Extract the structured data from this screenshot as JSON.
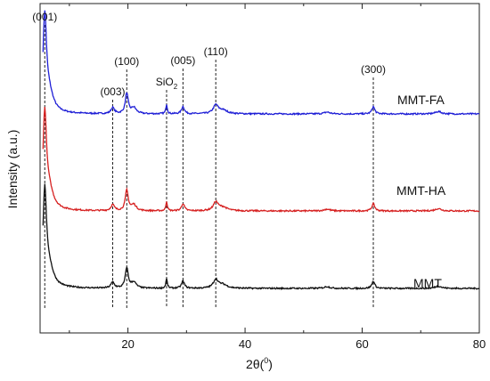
{
  "chart_data": {
    "type": "line",
    "title": "",
    "xlabel": "2θ(⁰)",
    "xlabel_parts": {
      "main": "2θ(",
      "sup": "0",
      "tail": ")"
    },
    "ylabel": "Intensity (a.u.)",
    "xlim": [
      5,
      80
    ],
    "xticks": [
      20,
      40,
      60,
      80
    ],
    "yticks_shown": false,
    "grid": false,
    "legend": "labels placed next to each curve",
    "series": [
      {
        "name": "MMT-FA",
        "color": "#1f1fd6",
        "offset": 2.0
      },
      {
        "name": "MMT-HA",
        "color": "#d62020",
        "offset": 1.0
      },
      {
        "name": "MMT",
        "color": "#111111",
        "offset": 0.0
      }
    ],
    "peaks": [
      {
        "x": 5.8,
        "h": 0.75,
        "w": 0.35
      },
      {
        "x": 6.5,
        "h": 0.16,
        "w": 0.9
      },
      {
        "x": 17.4,
        "h": 0.05,
        "w": 0.35
      },
      {
        "x": 19.8,
        "h": 0.17,
        "w": 0.3
      },
      {
        "x": 21.0,
        "h": 0.05,
        "w": 0.5
      },
      {
        "x": 26.6,
        "h": 0.08,
        "w": 0.15
      },
      {
        "x": 29.4,
        "h": 0.06,
        "w": 0.3
      },
      {
        "x": 35.0,
        "h": 0.07,
        "w": 0.5
      },
      {
        "x": 36.2,
        "h": 0.03,
        "w": 0.9
      },
      {
        "x": 54.0,
        "h": 0.015,
        "w": 0.6
      },
      {
        "x": 61.9,
        "h": 0.06,
        "w": 0.3
      },
      {
        "x": 73.0,
        "h": 0.02,
        "w": 0.6
      }
    ],
    "reflections": [
      {
        "label": "(001)",
        "x": 5.8
      },
      {
        "label": "(003)",
        "x": 17.4
      },
      {
        "label": "(100)",
        "x": 19.8
      },
      {
        "label": "SiO",
        "sub": "2",
        "x": 26.6
      },
      {
        "label": "(005)",
        "x": 29.4
      },
      {
        "label": "(110)",
        "x": 35.0
      },
      {
        "label": "(300)",
        "x": 61.9
      }
    ]
  }
}
